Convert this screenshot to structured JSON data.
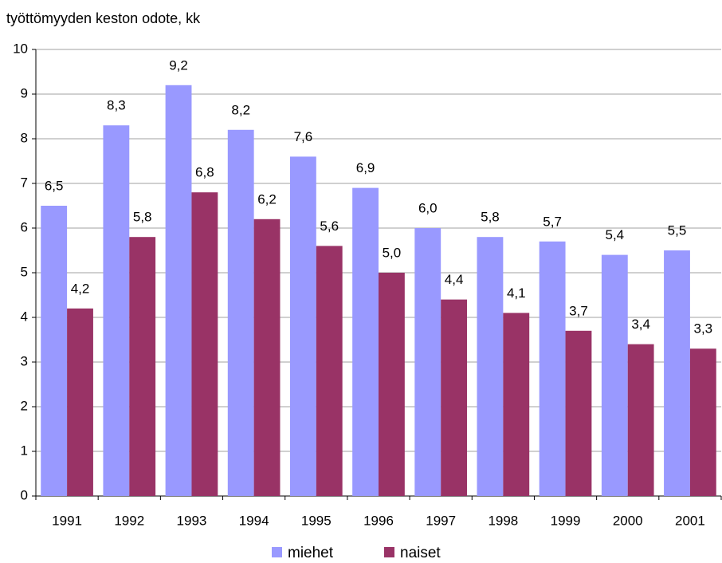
{
  "chart_data": {
    "type": "bar",
    "title": "työttömyyden keston odote, kk",
    "categories": [
      "1991",
      "1992",
      "1993",
      "1994",
      "1995",
      "1996",
      "1997",
      "1998",
      "1999",
      "2000",
      "2001"
    ],
    "series": [
      {
        "name": "miehet",
        "color": "#9999ff",
        "values": [
          6.5,
          8.3,
          9.2,
          8.2,
          7.6,
          6.9,
          6.0,
          5.8,
          5.7,
          5.4,
          5.5
        ],
        "value_labels": [
          "6,5",
          "8,3",
          "9,2",
          "8,2",
          "7,6",
          "6,9",
          "6,0",
          "5,8",
          "5,7",
          "5,4",
          "5,5"
        ]
      },
      {
        "name": "naiset",
        "color": "#993366",
        "values": [
          4.2,
          5.8,
          6.8,
          6.2,
          5.6,
          5.0,
          4.4,
          4.1,
          3.7,
          3.4,
          3.3
        ],
        "value_labels": [
          "4,2",
          "5,8",
          "6,8",
          "6,2",
          "5,6",
          "5,0",
          "4,4",
          "4,1",
          "3,7",
          "3,4",
          "3,3"
        ]
      }
    ],
    "ylim": [
      0,
      10
    ],
    "yticks": [
      0,
      1,
      2,
      3,
      4,
      5,
      6,
      7,
      8,
      9,
      10
    ],
    "grid": true,
    "legend": "bottom"
  }
}
